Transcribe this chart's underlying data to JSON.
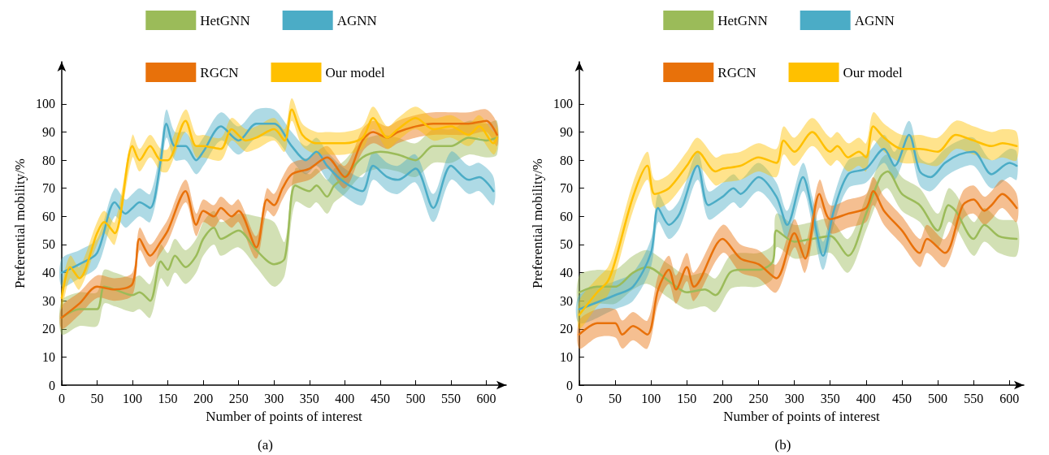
{
  "chart_data": [
    {
      "type": "line",
      "annotations": [
        "(a)"
      ],
      "xlabel": "Number of points of interest",
      "ylabel": "Preferential mobility/%",
      "xlim": [
        0,
        628
      ],
      "xticks": [
        0,
        50,
        100,
        150,
        200,
        250,
        300,
        350,
        400,
        450,
        500,
        550,
        600
      ],
      "ylim": [
        0,
        115
      ],
      "yticks": [
        0,
        10,
        20,
        30,
        40,
        50,
        60,
        70,
        80,
        90,
        100
      ],
      "grid": false,
      "legend": "top",
      "marker": "none",
      "line_style": "solid",
      "series": [
        {
          "name": "HetGNN",
          "color": "#9bbb59",
          "x": [
            0,
            25,
            50,
            60,
            75,
            100,
            110,
            125,
            140,
            150,
            160,
            175,
            190,
            200,
            215,
            225,
            250,
            275,
            300,
            315,
            330,
            350,
            360,
            375,
            385,
            400,
            425,
            450,
            475,
            500,
            525,
            550,
            575,
            600,
            615
          ],
          "values": [
            24,
            27,
            27,
            35,
            34,
            32,
            33,
            30,
            44,
            41,
            46,
            42,
            46,
            52,
            56,
            52,
            55,
            48,
            43,
            45,
            71,
            69,
            71,
            67,
            71,
            74,
            81,
            83,
            82,
            80,
            85,
            85,
            88,
            87,
            88
          ],
          "lower": [
            18,
            21,
            21,
            29,
            28,
            26,
            27,
            24,
            38,
            35,
            40,
            36,
            40,
            46,
            50,
            46,
            49,
            42,
            35,
            39,
            65,
            63,
            65,
            61,
            65,
            68,
            75,
            77,
            76,
            74,
            79,
            79,
            82,
            81,
            82
          ],
          "upper": [
            30,
            33,
            33,
            41,
            40,
            38,
            39,
            36,
            50,
            47,
            52,
            48,
            52,
            58,
            62,
            58,
            61,
            60,
            58,
            51,
            77,
            75,
            77,
            73,
            77,
            80,
            87,
            89,
            88,
            86,
            91,
            91,
            94,
            93,
            94
          ]
        },
        {
          "name": "AGNN",
          "color": "#4bacc6",
          "x": [
            0,
            25,
            50,
            75,
            90,
            100,
            110,
            125,
            140,
            148,
            160,
            175,
            190,
            200,
            225,
            250,
            275,
            300,
            325,
            345,
            360,
            375,
            400,
            425,
            440,
            460,
            475,
            500,
            525,
            550,
            575,
            590,
            610
          ],
          "values": [
            40,
            43,
            47,
            65,
            61,
            63,
            65,
            63,
            80,
            93,
            85,
            85,
            80,
            83,
            92,
            87,
            93,
            93,
            85,
            80,
            83,
            78,
            72,
            69,
            78,
            74,
            73,
            77,
            63,
            78,
            73,
            74,
            69
          ],
          "lower": [
            35,
            38,
            42,
            60,
            56,
            58,
            60,
            58,
            75,
            88,
            80,
            80,
            75,
            78,
            87,
            82,
            88,
            88,
            80,
            75,
            78,
            73,
            67,
            64,
            73,
            69,
            68,
            72,
            58,
            73,
            68,
            69,
            64
          ],
          "upper": [
            45,
            48,
            52,
            70,
            66,
            68,
            70,
            68,
            85,
            98,
            90,
            90,
            85,
            88,
            97,
            92,
            98,
            98,
            90,
            85,
            88,
            83,
            77,
            74,
            83,
            79,
            78,
            82,
            68,
            83,
            78,
            79,
            74
          ]
        },
        {
          "name": "RGCN",
          "color": "#e8710a",
          "x": [
            0,
            25,
            50,
            75,
            100,
            110,
            125,
            140,
            150,
            175,
            190,
            200,
            215,
            225,
            240,
            250,
            275,
            290,
            300,
            312,
            325,
            350,
            375,
            400,
            425,
            440,
            460,
            475,
            500,
            525,
            550,
            575,
            600,
            615
          ],
          "values": [
            24,
            29,
            35,
            34,
            36,
            52,
            46,
            51,
            55,
            69,
            57,
            62,
            60,
            63,
            60,
            62,
            49,
            66,
            64,
            70,
            75,
            77,
            81,
            74,
            87,
            90,
            88,
            90,
            92,
            93,
            93,
            93,
            94,
            89
          ],
          "lower": [
            20,
            25,
            31,
            30,
            32,
            48,
            42,
            47,
            51,
            65,
            53,
            58,
            56,
            59,
            56,
            58,
            45,
            62,
            60,
            66,
            71,
            73,
            77,
            70,
            83,
            86,
            84,
            86,
            88,
            89,
            89,
            89,
            90,
            85
          ],
          "upper": [
            28,
            33,
            39,
            38,
            40,
            56,
            50,
            55,
            59,
            73,
            61,
            66,
            64,
            67,
            64,
            66,
            53,
            70,
            68,
            74,
            79,
            81,
            85,
            78,
            91,
            94,
            92,
            94,
            96,
            97,
            97,
            97,
            98,
            93
          ]
        },
        {
          "name": "Our model",
          "color": "#ffc000",
          "x": [
            0,
            12,
            25,
            50,
            60,
            75,
            100,
            110,
            125,
            140,
            150,
            175,
            190,
            200,
            225,
            240,
            260,
            275,
            300,
            315,
            325,
            340,
            360,
            375,
            400,
            425,
            440,
            460,
            475,
            500,
            525,
            550,
            575,
            590,
            610,
            615
          ],
          "values": [
            31,
            42,
            38,
            54,
            58,
            54,
            85,
            80,
            85,
            80,
            80,
            94,
            85,
            85,
            84,
            91,
            87,
            88,
            91,
            87,
            98,
            89,
            86,
            86,
            86,
            88,
            95,
            88,
            91,
            95,
            91,
            92,
            89,
            92,
            86,
            88
          ],
          "lower": [
            27,
            38,
            34,
            50,
            54,
            50,
            81,
            76,
            81,
            76,
            76,
            90,
            81,
            81,
            80,
            87,
            83,
            84,
            87,
            83,
            94,
            85,
            82,
            82,
            82,
            84,
            91,
            84,
            87,
            91,
            87,
            88,
            85,
            88,
            82,
            84
          ],
          "upper": [
            35,
            46,
            42,
            58,
            62,
            58,
            89,
            84,
            89,
            84,
            84,
            98,
            89,
            89,
            88,
            95,
            91,
            92,
            95,
            91,
            102,
            93,
            90,
            90,
            90,
            92,
            99,
            92,
            95,
            99,
            95,
            96,
            93,
            96,
            90,
            92
          ]
        }
      ]
    },
    {
      "type": "line",
      "annotations": [
        "(b)"
      ],
      "xlabel": "Number of points of interest",
      "ylabel": "Preferential mobility/%",
      "xlim": [
        0,
        620
      ],
      "xticks": [
        0,
        50,
        100,
        150,
        200,
        250,
        300,
        350,
        400,
        450,
        500,
        550,
        600
      ],
      "ylim": [
        0,
        115
      ],
      "yticks": [
        0,
        10,
        20,
        30,
        40,
        50,
        60,
        70,
        80,
        90,
        100
      ],
      "grid": false,
      "legend": "top",
      "marker": "none",
      "line_style": "solid",
      "series": [
        {
          "name": "HetGNN",
          "color": "#9bbb59",
          "x": [
            0,
            25,
            50,
            75,
            95,
            125,
            150,
            175,
            190,
            210,
            225,
            250,
            270,
            275,
            300,
            325,
            350,
            375,
            400,
            420,
            430,
            450,
            475,
            500,
            515,
            525,
            550,
            565,
            585,
            610
          ],
          "values": [
            33,
            35,
            35,
            40,
            42,
            37,
            33,
            34,
            32,
            40,
            41,
            41,
            44,
            55,
            51,
            52,
            53,
            46,
            61,
            74,
            76,
            68,
            64,
            55,
            64,
            62,
            52,
            57,
            53,
            52
          ],
          "lower": [
            27,
            29,
            29,
            34,
            36,
            31,
            27,
            28,
            26,
            34,
            35,
            35,
            38,
            49,
            45,
            46,
            47,
            40,
            55,
            68,
            70,
            62,
            58,
            49,
            58,
            56,
            46,
            51,
            47,
            46
          ],
          "upper": [
            39,
            41,
            41,
            46,
            48,
            43,
            39,
            40,
            38,
            46,
            47,
            47,
            50,
            61,
            57,
            58,
            59,
            52,
            67,
            80,
            82,
            74,
            70,
            61,
            70,
            68,
            58,
            63,
            59,
            58
          ]
        },
        {
          "name": "AGNN",
          "color": "#4bacc6",
          "x": [
            0,
            50,
            75,
            100,
            110,
            125,
            140,
            165,
            180,
            200,
            215,
            225,
            250,
            275,
            290,
            312,
            325,
            340,
            355,
            375,
            400,
            425,
            440,
            460,
            475,
            490,
            510,
            530,
            550,
            575,
            600,
            610
          ],
          "values": [
            27,
            32,
            35,
            47,
            63,
            57,
            61,
            78,
            64,
            67,
            70,
            68,
            74,
            67,
            57,
            74,
            62,
            46,
            62,
            75,
            77,
            84,
            78,
            89,
            76,
            74,
            79,
            82,
            83,
            75,
            79,
            78
          ],
          "lower": [
            22,
            27,
            30,
            42,
            58,
            52,
            56,
            73,
            59,
            62,
            65,
            63,
            69,
            62,
            52,
            69,
            57,
            41,
            57,
            70,
            72,
            79,
            73,
            84,
            71,
            69,
            74,
            77,
            78,
            70,
            74,
            73
          ],
          "upper": [
            32,
            37,
            40,
            52,
            68,
            62,
            66,
            83,
            69,
            72,
            75,
            73,
            79,
            72,
            62,
            79,
            67,
            51,
            67,
            80,
            82,
            89,
            83,
            94,
            81,
            79,
            84,
            87,
            88,
            80,
            84,
            83
          ]
        },
        {
          "name": "RGCN",
          "color": "#e8710a",
          "x": [
            0,
            25,
            50,
            60,
            75,
            95,
            110,
            125,
            135,
            150,
            160,
            200,
            225,
            250,
            275,
            300,
            315,
            335,
            350,
            375,
            400,
            410,
            425,
            450,
            475,
            485,
            510,
            535,
            550,
            565,
            575,
            590,
            610
          ],
          "values": [
            18,
            22,
            22,
            18,
            21,
            18,
            34,
            41,
            34,
            42,
            35,
            52,
            45,
            43,
            38,
            54,
            45,
            68,
            59,
            61,
            63,
            69,
            62,
            55,
            47,
            52,
            47,
            64,
            66,
            62,
            64,
            68,
            63
          ],
          "lower": [
            13,
            17,
            17,
            13,
            16,
            13,
            29,
            36,
            29,
            37,
            30,
            47,
            40,
            38,
            33,
            49,
            40,
            63,
            54,
            56,
            58,
            64,
            57,
            50,
            42,
            47,
            42,
            59,
            61,
            57,
            59,
            63,
            58
          ],
          "upper": [
            23,
            27,
            27,
            23,
            26,
            23,
            39,
            46,
            39,
            47,
            40,
            57,
            50,
            48,
            43,
            59,
            50,
            73,
            64,
            66,
            68,
            74,
            67,
            60,
            52,
            57,
            52,
            69,
            71,
            67,
            69,
            73,
            68
          ]
        },
        {
          "name": "Our model",
          "color": "#ffc000",
          "x": [
            0,
            25,
            40,
            50,
            75,
            95,
            105,
            125,
            150,
            165,
            190,
            200,
            225,
            250,
            275,
            285,
            300,
            325,
            350,
            360,
            375,
            390,
            400,
            410,
            425,
            450,
            475,
            500,
            525,
            550,
            575,
            590,
            610
          ],
          "values": [
            25,
            33,
            37,
            44,
            67,
            78,
            68,
            70,
            78,
            83,
            76,
            77,
            78,
            81,
            79,
            87,
            83,
            90,
            83,
            85,
            81,
            83,
            81,
            92,
            88,
            84,
            84,
            83,
            89,
            87,
            85,
            86,
            85
          ],
          "lower": [
            20,
            28,
            32,
            39,
            62,
            73,
            63,
            65,
            73,
            78,
            71,
            72,
            73,
            76,
            74,
            82,
            78,
            85,
            78,
            80,
            76,
            78,
            76,
            87,
            83,
            79,
            79,
            78,
            84,
            82,
            80,
            81,
            80
          ],
          "upper": [
            30,
            38,
            42,
            49,
            72,
            83,
            73,
            75,
            83,
            88,
            81,
            82,
            83,
            86,
            84,
            92,
            88,
            95,
            88,
            90,
            86,
            88,
            86,
            97,
            93,
            89,
            89,
            88,
            94,
            92,
            90,
            91,
            90
          ]
        }
      ]
    }
  ]
}
